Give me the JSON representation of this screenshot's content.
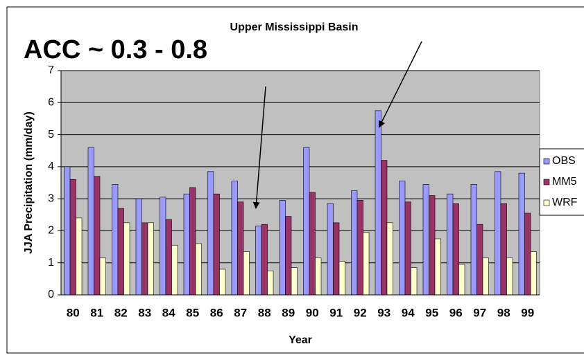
{
  "chart_data": {
    "type": "bar",
    "title": "Upper Mississippi Basin",
    "annotations": [
      "ACC ~ 0.3 - 0.8"
    ],
    "x_label": "Year",
    "y_label": "JJA Precipitation (mm/day)",
    "categories": [
      "80",
      "81",
      "82",
      "83",
      "84",
      "85",
      "86",
      "87",
      "88",
      "89",
      "90",
      "91",
      "92",
      "93",
      "94",
      "95",
      "96",
      "97",
      "98",
      "99"
    ],
    "series": [
      {
        "name": "OBS",
        "color": "#9999ff",
        "values": [
          4.0,
          4.6,
          3.45,
          3.0,
          3.05,
          3.15,
          3.85,
          3.55,
          2.15,
          2.95,
          4.6,
          2.85,
          3.25,
          5.75,
          3.55,
          3.45,
          3.15,
          3.45,
          3.85,
          3.8
        ]
      },
      {
        "name": "MM5",
        "color": "#993366",
        "values": [
          3.6,
          3.7,
          2.7,
          2.25,
          2.35,
          3.35,
          3.15,
          2.9,
          2.2,
          2.45,
          3.2,
          2.25,
          2.95,
          4.2,
          2.9,
          3.1,
          2.85,
          2.2,
          2.85,
          2.55
        ]
      },
      {
        "name": "WRF",
        "color": "#ffffcc",
        "values": [
          2.4,
          1.15,
          2.25,
          2.25,
          1.55,
          1.6,
          0.8,
          1.35,
          0.75,
          0.85,
          1.15,
          1.05,
          1.95,
          2.25,
          0.85,
          1.75,
          0.95,
          1.15,
          1.15,
          1.35
        ]
      }
    ],
    "ylim": [
      0,
      7
    ],
    "yticks": [
      0,
      1,
      2,
      3,
      4,
      5,
      6,
      7
    ],
    "grid": true,
    "legend": "right"
  }
}
